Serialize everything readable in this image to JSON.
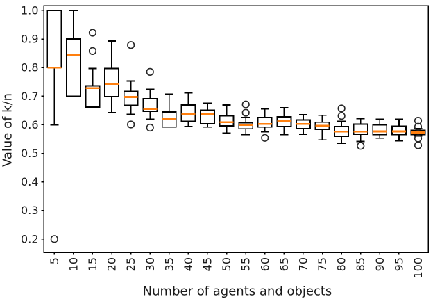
{
  "figure": {
    "background": "#ffffff"
  },
  "chart_data": {
    "type": "boxplot",
    "title": "",
    "xlabel": "Number of agents and objects",
    "ylabel": "Value of k/n",
    "categories": [
      5,
      10,
      15,
      20,
      25,
      30,
      35,
      40,
      45,
      50,
      55,
      60,
      65,
      70,
      75,
      80,
      85,
      90,
      95,
      100
    ],
    "y_tick_labels": [
      "1.0",
      "0.9",
      "0.8",
      "0.7",
      "0.6",
      "0.5",
      "0.4",
      "0.3",
      "0.2"
    ],
    "y_tick_values": [
      1.0,
      0.9,
      0.8,
      0.7,
      0.6,
      0.5,
      0.4,
      0.3,
      0.2
    ],
    "ylim": [
      0.153,
      1.017
    ],
    "grid": false,
    "legend": null,
    "colors": {
      "box_stroke": "#000000",
      "median": "#ff7f0e",
      "outlier_stroke": "#262626",
      "axis": "#000000",
      "text": "#1a1a1a"
    },
    "boxes": [
      {
        "x": 5,
        "whislo": 0.6,
        "q1": 0.8,
        "med": 0.8,
        "q3": 1.0,
        "whishi": 1.0,
        "outliers": [
          0.2
        ]
      },
      {
        "x": 10,
        "whislo": 0.7,
        "q1": 0.7,
        "med": 0.845,
        "q3": 0.9,
        "whishi": 1.0,
        "outliers": []
      },
      {
        "x": 15,
        "whislo": 0.662,
        "q1": 0.662,
        "med": 0.728,
        "q3": 0.736,
        "whishi": 0.797,
        "outliers": [
          0.858,
          0.922
        ]
      },
      {
        "x": 20,
        "whislo": 0.643,
        "q1": 0.698,
        "med": 0.743,
        "q3": 0.797,
        "whishi": 0.893,
        "outliers": []
      },
      {
        "x": 25,
        "whislo": 0.636,
        "q1": 0.668,
        "med": 0.697,
        "q3": 0.717,
        "whishi": 0.753,
        "outliers": [
          0.879,
          0.601
        ]
      },
      {
        "x": 30,
        "whislo": 0.619,
        "q1": 0.647,
        "med": 0.655,
        "q3": 0.691,
        "whishi": 0.724,
        "outliers": [
          0.785,
          0.59
        ]
      },
      {
        "x": 35,
        "whislo": 0.592,
        "q1": 0.592,
        "med": 0.619,
        "q3": 0.645,
        "whishi": 0.707,
        "outliers": []
      },
      {
        "x": 40,
        "whislo": 0.594,
        "q1": 0.612,
        "med": 0.639,
        "q3": 0.669,
        "whishi": 0.712,
        "outliers": []
      },
      {
        "x": 45,
        "whislo": 0.592,
        "q1": 0.604,
        "med": 0.636,
        "q3": 0.651,
        "whishi": 0.676,
        "outliers": []
      },
      {
        "x": 50,
        "whislo": 0.571,
        "q1": 0.596,
        "med": 0.609,
        "q3": 0.631,
        "whishi": 0.669,
        "outliers": []
      },
      {
        "x": 55,
        "whislo": 0.565,
        "q1": 0.586,
        "med": 0.6,
        "q3": 0.607,
        "whishi": 0.625,
        "outliers": [
          0.671,
          0.642
        ]
      },
      {
        "x": 60,
        "whislo": 0.575,
        "q1": 0.592,
        "med": 0.603,
        "q3": 0.625,
        "whishi": 0.655,
        "outliers": [
          0.554
        ]
      },
      {
        "x": 65,
        "whislo": 0.565,
        "q1": 0.594,
        "med": 0.614,
        "q3": 0.628,
        "whishi": 0.66,
        "outliers": []
      },
      {
        "x": 70,
        "whislo": 0.567,
        "q1": 0.587,
        "med": 0.603,
        "q3": 0.617,
        "whishi": 0.635,
        "outliers": []
      },
      {
        "x": 75,
        "whislo": 0.547,
        "q1": 0.584,
        "med": 0.596,
        "q3": 0.609,
        "whishi": 0.633,
        "outliers": []
      },
      {
        "x": 80,
        "whislo": 0.535,
        "q1": 0.559,
        "med": 0.576,
        "q3": 0.594,
        "whishi": 0.612,
        "outliers": [
          0.657,
          0.631
        ]
      },
      {
        "x": 85,
        "whislo": 0.541,
        "q1": 0.567,
        "med": 0.576,
        "q3": 0.602,
        "whishi": 0.622,
        "outliers": [
          0.526
        ]
      },
      {
        "x": 90,
        "whislo": 0.553,
        "q1": 0.565,
        "med": 0.577,
        "q3": 0.6,
        "whishi": 0.619,
        "outliers": []
      },
      {
        "x": 95,
        "whislo": 0.544,
        "q1": 0.565,
        "med": 0.577,
        "q3": 0.595,
        "whishi": 0.619,
        "outliers": []
      },
      {
        "x": 100,
        "whislo": 0.561,
        "q1": 0.566,
        "med": 0.573,
        "q3": 0.58,
        "whishi": 0.587,
        "outliers": [
          0.614,
          0.593,
          0.552,
          0.528
        ]
      }
    ]
  }
}
